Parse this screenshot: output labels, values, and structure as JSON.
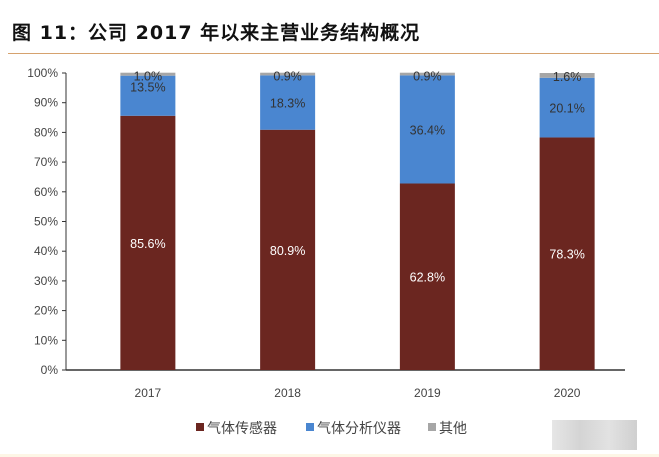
{
  "chart_data": {
    "type": "bar",
    "stacked": true,
    "title": "图 11：公司 2017 年以来主营业务结构概况",
    "categories": [
      "2017",
      "2018",
      "2019",
      "2020"
    ],
    "series": [
      {
        "name": "气体传感器",
        "color": "#6b2620",
        "values": [
          85.6,
          80.9,
          62.8,
          78.3
        ],
        "labels": [
          "85.6%",
          "80.9%",
          "62.8%",
          "78.3%"
        ]
      },
      {
        "name": "气体分析仪器",
        "color": "#4a86d0",
        "values": [
          13.5,
          18.3,
          36.4,
          20.1
        ],
        "labels": [
          "13.5%",
          "18.3%",
          "36.4%",
          "20.1%"
        ]
      },
      {
        "name": "其他",
        "color": "#a6a6a6",
        "values": [
          1.0,
          0.9,
          0.9,
          1.6
        ],
        "labels": [
          "1.0%",
          "0.9%",
          "0.9%",
          "1.6%"
        ]
      }
    ],
    "yticks": [
      "0%",
      "10%",
      "20%",
      "30%",
      "40%",
      "50%",
      "60%",
      "70%",
      "80%",
      "90%",
      "100%"
    ],
    "ylim": [
      0,
      100
    ],
    "xlabel": "",
    "ylabel": "",
    "legend": "bottom",
    "grid": false
  }
}
